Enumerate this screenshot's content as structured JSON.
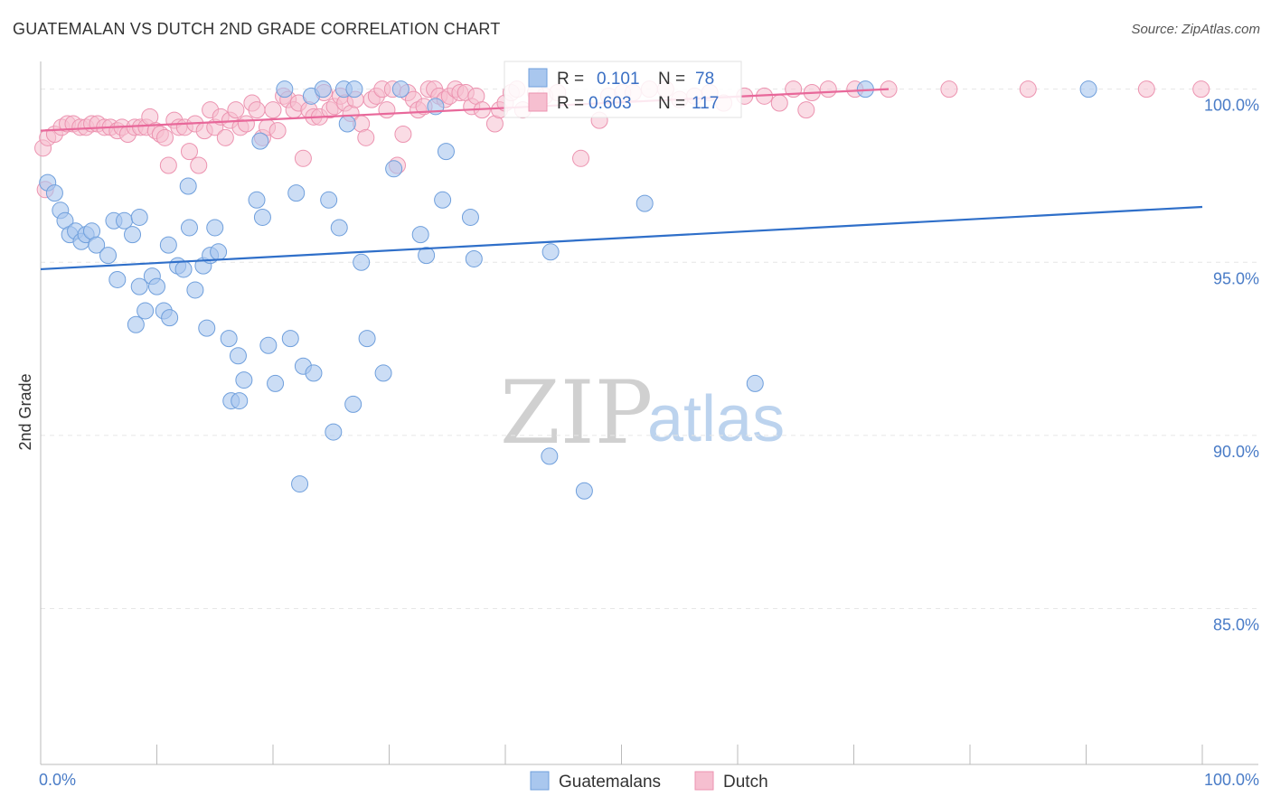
{
  "title": "GUATEMALAN VS DUTCH 2ND GRADE CORRELATION CHART",
  "source": "Source: ZipAtlas.com",
  "watermark": {
    "zip": "ZIP",
    "atlas": "atlas"
  },
  "colors": {
    "blue_fill": "#a9c7ee",
    "blue_stroke": "#6f9fdc",
    "blue_line": "#2f6fc9",
    "pink_fill": "#f6bfd0",
    "pink_stroke": "#ec93b0",
    "pink_line": "#e8689a",
    "grid": "#e6e6e6",
    "axis_text": "#4a7cc7"
  },
  "legend": {
    "rows": [
      {
        "r_label": "R =",
        "r_value": "0.101",
        "n_label": "N =",
        "n_value": "78",
        "series": "blue"
      },
      {
        "r_label": "R =",
        "r_value": "0.603",
        "n_label": "N =",
        "n_value": "117",
        "series": "pink"
      }
    ]
  },
  "bottom_legend": [
    "Guatemalans",
    "Dutch"
  ],
  "chart_data": {
    "type": "scatter",
    "title": "GUATEMALAN VS DUTCH 2ND GRADE CORRELATION CHART",
    "xlabel": "",
    "ylabel": "2nd Grade",
    "xlim": [
      0,
      100
    ],
    "ylim": [
      80.5,
      100.8
    ],
    "x_tick_labels": [
      "0.0%",
      "100.0%"
    ],
    "y_ticks": [
      85,
      90,
      95,
      100
    ],
    "y_tick_labels": [
      "85.0%",
      "90.0%",
      "95.0%",
      "100.0%"
    ],
    "grid": true,
    "legend_position": "top-center",
    "series": [
      {
        "name": "Guatemalans",
        "color": "#a9c7ee",
        "trend": [
          [
            0,
            94.8
          ],
          [
            100,
            96.6
          ]
        ],
        "points": [
          [
            0.6,
            97.3
          ],
          [
            1.2,
            97.0
          ],
          [
            1.7,
            96.5
          ],
          [
            2.1,
            96.2
          ],
          [
            2.5,
            95.8
          ],
          [
            3.0,
            95.9
          ],
          [
            3.5,
            95.6
          ],
          [
            3.9,
            95.8
          ],
          [
            4.4,
            95.9
          ],
          [
            4.8,
            95.5
          ],
          [
            5.8,
            95.2
          ],
          [
            6.3,
            96.2
          ],
          [
            7.2,
            96.2
          ],
          [
            7.9,
            95.8
          ],
          [
            8.5,
            96.3
          ],
          [
            6.6,
            94.5
          ],
          [
            8.2,
            93.2
          ],
          [
            8.5,
            94.3
          ],
          [
            9.0,
            93.6
          ],
          [
            9.6,
            94.6
          ],
          [
            10.0,
            94.3
          ],
          [
            10.6,
            93.6
          ],
          [
            11.0,
            95.5
          ],
          [
            11.1,
            93.4
          ],
          [
            11.8,
            94.9
          ],
          [
            12.3,
            94.8
          ],
          [
            12.8,
            96.0
          ],
          [
            12.7,
            97.2
          ],
          [
            13.3,
            94.2
          ],
          [
            14.0,
            94.9
          ],
          [
            14.3,
            93.1
          ],
          [
            14.6,
            95.2
          ],
          [
            15.0,
            96.0
          ],
          [
            15.3,
            95.3
          ],
          [
            16.2,
            92.8
          ],
          [
            16.4,
            91.0
          ],
          [
            17.0,
            92.3
          ],
          [
            17.1,
            91.0
          ],
          [
            17.5,
            91.6
          ],
          [
            18.6,
            96.8
          ],
          [
            18.9,
            98.5
          ],
          [
            19.1,
            96.3
          ],
          [
            19.6,
            92.6
          ],
          [
            20.2,
            91.5
          ],
          [
            21.0,
            100.0
          ],
          [
            21.5,
            92.8
          ],
          [
            22.0,
            97.0
          ],
          [
            22.3,
            88.6
          ],
          [
            22.6,
            92.0
          ],
          [
            23.5,
            91.8
          ],
          [
            23.3,
            99.8
          ],
          [
            24.3,
            100.0
          ],
          [
            24.8,
            96.8
          ],
          [
            25.2,
            90.1
          ],
          [
            25.7,
            96.0
          ],
          [
            26.1,
            100.0
          ],
          [
            26.4,
            99.0
          ],
          [
            26.9,
            90.9
          ],
          [
            27.0,
            100.0
          ],
          [
            27.6,
            95.0
          ],
          [
            28.1,
            92.8
          ],
          [
            29.5,
            91.8
          ],
          [
            30.4,
            97.7
          ],
          [
            31.0,
            100.0
          ],
          [
            32.7,
            95.8
          ],
          [
            33.2,
            95.2
          ],
          [
            34.0,
            99.5
          ],
          [
            34.6,
            96.8
          ],
          [
            34.9,
            98.2
          ],
          [
            37.0,
            96.3
          ],
          [
            37.3,
            95.1
          ],
          [
            43.8,
            89.4
          ],
          [
            43.9,
            95.3
          ],
          [
            46.8,
            88.4
          ],
          [
            52.0,
            96.7
          ],
          [
            61.5,
            91.5
          ],
          [
            71.0,
            100.0
          ],
          [
            90.2,
            100.0
          ]
        ]
      },
      {
        "name": "Dutch",
        "color": "#f6bfd0",
        "trend": [
          [
            0,
            98.8
          ],
          [
            73,
            100.0
          ]
        ],
        "points": [
          [
            0.2,
            98.3
          ],
          [
            0.4,
            97.1
          ],
          [
            0.6,
            98.6
          ],
          [
            1.2,
            98.7
          ],
          [
            1.8,
            98.9
          ],
          [
            2.3,
            99.0
          ],
          [
            2.8,
            99.0
          ],
          [
            3.4,
            98.9
          ],
          [
            3.9,
            98.9
          ],
          [
            4.4,
            99.0
          ],
          [
            4.9,
            99.0
          ],
          [
            5.5,
            98.9
          ],
          [
            6.0,
            98.9
          ],
          [
            6.6,
            98.8
          ],
          [
            7.0,
            98.9
          ],
          [
            7.5,
            98.7
          ],
          [
            8.1,
            98.9
          ],
          [
            8.6,
            98.9
          ],
          [
            9.1,
            98.9
          ],
          [
            9.4,
            99.2
          ],
          [
            9.9,
            98.8
          ],
          [
            10.3,
            98.7
          ],
          [
            10.7,
            98.6
          ],
          [
            11.0,
            97.8
          ],
          [
            11.5,
            99.1
          ],
          [
            11.9,
            98.9
          ],
          [
            12.4,
            98.9
          ],
          [
            12.8,
            98.2
          ],
          [
            13.3,
            99.0
          ],
          [
            13.6,
            97.8
          ],
          [
            14.1,
            98.8
          ],
          [
            14.6,
            99.4
          ],
          [
            15.0,
            98.9
          ],
          [
            15.5,
            99.2
          ],
          [
            15.9,
            98.6
          ],
          [
            16.3,
            99.1
          ],
          [
            16.8,
            99.4
          ],
          [
            17.2,
            98.9
          ],
          [
            17.7,
            99.0
          ],
          [
            18.2,
            99.6
          ],
          [
            18.6,
            99.4
          ],
          [
            19.1,
            98.6
          ],
          [
            19.5,
            98.9
          ],
          [
            20.0,
            99.4
          ],
          [
            20.4,
            98.8
          ],
          [
            20.9,
            99.8
          ],
          [
            21.3,
            99.7
          ],
          [
            21.8,
            99.4
          ],
          [
            22.2,
            99.6
          ],
          [
            22.6,
            98.0
          ],
          [
            23.1,
            99.4
          ],
          [
            23.5,
            99.2
          ],
          [
            24.0,
            99.2
          ],
          [
            24.4,
            99.9
          ],
          [
            24.9,
            99.4
          ],
          [
            25.3,
            99.5
          ],
          [
            25.8,
            99.8
          ],
          [
            26.2,
            99.6
          ],
          [
            26.7,
            99.3
          ],
          [
            27.1,
            99.7
          ],
          [
            27.6,
            99.0
          ],
          [
            28.0,
            98.6
          ],
          [
            28.5,
            99.7
          ],
          [
            28.9,
            99.8
          ],
          [
            29.4,
            100.0
          ],
          [
            29.8,
            99.4
          ],
          [
            30.3,
            100.0
          ],
          [
            30.7,
            97.8
          ],
          [
            31.2,
            98.7
          ],
          [
            31.6,
            99.9
          ],
          [
            32.1,
            99.7
          ],
          [
            32.5,
            99.4
          ],
          [
            33.0,
            99.5
          ],
          [
            33.4,
            100.0
          ],
          [
            33.9,
            100.0
          ],
          [
            34.3,
            99.8
          ],
          [
            34.8,
            99.7
          ],
          [
            35.2,
            99.8
          ],
          [
            35.7,
            100.0
          ],
          [
            36.1,
            99.9
          ],
          [
            36.6,
            99.9
          ],
          [
            37.1,
            99.5
          ],
          [
            37.5,
            99.8
          ],
          [
            38.0,
            99.4
          ],
          [
            39.1,
            99.0
          ],
          [
            39.5,
            99.4
          ],
          [
            40.0,
            99.6
          ],
          [
            40.5,
            99.9
          ],
          [
            41.0,
            100.0
          ],
          [
            41.5,
            99.4
          ],
          [
            43.4,
            99.8
          ],
          [
            44.5,
            99.9
          ],
          [
            46.5,
            98.0
          ],
          [
            48.1,
            99.1
          ],
          [
            48.9,
            99.8
          ],
          [
            50.1,
            99.9
          ],
          [
            51.0,
            99.9
          ],
          [
            52.4,
            100.0
          ],
          [
            53.8,
            100.0
          ],
          [
            55.0,
            99.7
          ],
          [
            56.3,
            99.8
          ],
          [
            57.6,
            99.9
          ],
          [
            58.8,
            99.6
          ],
          [
            60.6,
            99.8
          ],
          [
            62.3,
            99.8
          ],
          [
            63.6,
            99.6
          ],
          [
            64.8,
            100.0
          ],
          [
            65.9,
            99.4
          ],
          [
            66.4,
            99.9
          ],
          [
            67.8,
            100.0
          ],
          [
            70.1,
            100.0
          ],
          [
            73.0,
            100.0
          ],
          [
            78.2,
            100.0
          ],
          [
            85.0,
            100.0
          ],
          [
            95.2,
            100.0
          ],
          [
            99.9,
            100.0
          ],
          [
            42.6,
            99.9
          ]
        ]
      }
    ]
  }
}
